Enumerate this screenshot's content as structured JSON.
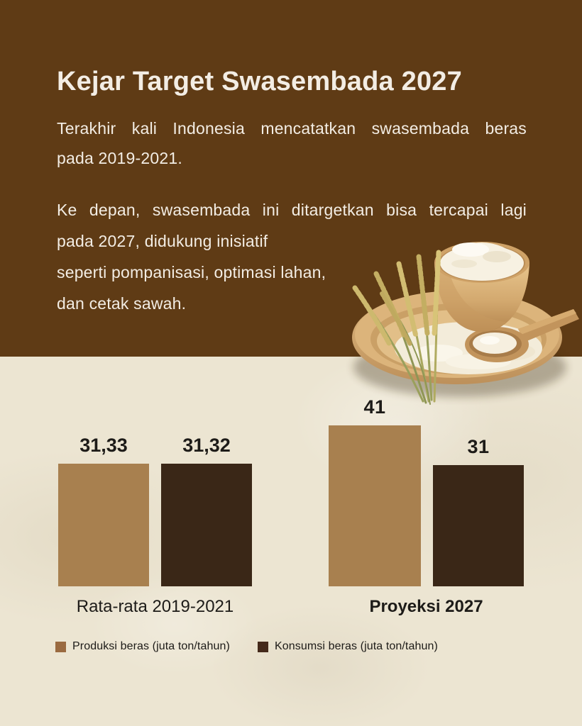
{
  "header": {
    "title": "Kejar Target Swasembada 2027",
    "paragraph1": {
      "line1": "Terakhir kali Indonesia mencatatkan swasembada beras",
      "line2": "pada 2019-2021."
    },
    "paragraph2": {
      "line1": "Ke depan, swasembada ini ditargetkan bisa tercapai lagi",
      "line2": "pada 2027, didukung inisiatif",
      "line3": "seperti pompanisasi, optimasi lahan,",
      "line4": "dan cetak sawah."
    },
    "background_color": "#5f3b15",
    "text_color": "#f3ede4"
  },
  "assets": {
    "rice_image": "rice-bowl-with-paddy-stalks-and-spoon-on-wooden-plate"
  },
  "chart_data": {
    "type": "bar",
    "categories": [
      "Rata-rata 2019-2021",
      "Proyeksi 2027"
    ],
    "series": [
      {
        "name": "Produksi beras (juta ton/tahun)",
        "values": [
          31.33,
          41
        ],
        "display_values": [
          "31,33",
          "41"
        ],
        "color": "#a8804f"
      },
      {
        "name": "Konsumsi beras (juta ton/tahun)",
        "values": [
          31.32,
          31
        ],
        "display_values": [
          "31,32",
          "31"
        ],
        "color": "#3a2717"
      }
    ],
    "ylabel": "juta ton/tahun",
    "ylim": [
      0,
      41
    ],
    "grid": false,
    "legend_position": "bottom",
    "value_labels": true
  },
  "legend": {
    "items": [
      {
        "label": "Produksi beras (juta ton/tahun)",
        "color": "#9a6a40"
      },
      {
        "label": "Konsumsi beras (juta ton/tahun)",
        "color": "#44291a"
      }
    ]
  },
  "canvas": {
    "background_color": "#ece5d2"
  }
}
